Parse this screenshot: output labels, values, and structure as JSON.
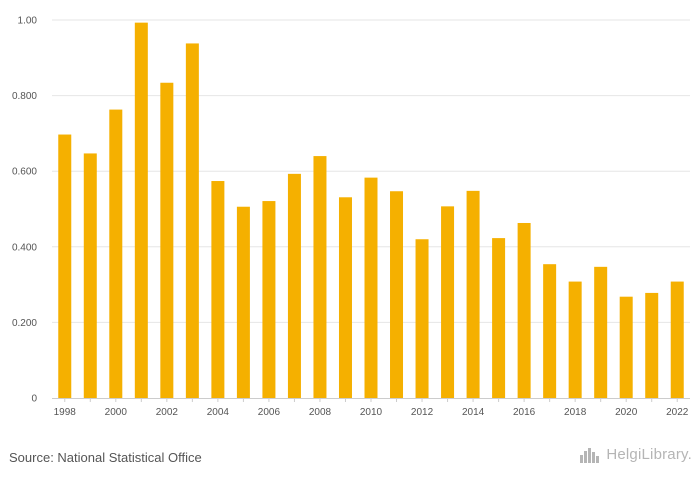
{
  "chart_data": {
    "type": "bar",
    "categories": [
      "1998",
      "1999",
      "2000",
      "2001",
      "2002",
      "2003",
      "2004",
      "2005",
      "2006",
      "2007",
      "2008",
      "2009",
      "2010",
      "2011",
      "2012",
      "2013",
      "2014",
      "2015",
      "2016",
      "2017",
      "2018",
      "2019",
      "2020",
      "2021",
      "2022"
    ],
    "values": [
      0.697,
      0.647,
      0.763,
      0.993,
      0.834,
      0.938,
      0.574,
      0.506,
      0.521,
      0.593,
      0.64,
      0.531,
      0.583,
      0.547,
      0.42,
      0.507,
      0.548,
      0.423,
      0.463,
      0.354,
      0.308,
      0.347,
      0.268,
      0.278,
      0.308
    ],
    "x_tick_labels": [
      "1998",
      "2000",
      "2002",
      "2004",
      "2006",
      "2008",
      "2010",
      "2012",
      "2014",
      "2016",
      "2018",
      "2020",
      "2022"
    ],
    "y_ticks": [
      {
        "value": 0,
        "label": "0"
      },
      {
        "value": 0.2,
        "label": "0.200"
      },
      {
        "value": 0.4,
        "label": "0.400"
      },
      {
        "value": 0.6,
        "label": "0.600"
      },
      {
        "value": 0.8,
        "label": "0.800"
      },
      {
        "value": 1.0,
        "label": "1.00"
      }
    ],
    "ylim": [
      0,
      1.0
    ],
    "grid": true,
    "bar_color": "#f5b000",
    "grid_color": "#e6e6e6",
    "title": "",
    "xlabel": "",
    "ylabel": ""
  },
  "footer": {
    "source": "Source: National Statistical Office",
    "logo_text": "HelgiLibrary."
  }
}
